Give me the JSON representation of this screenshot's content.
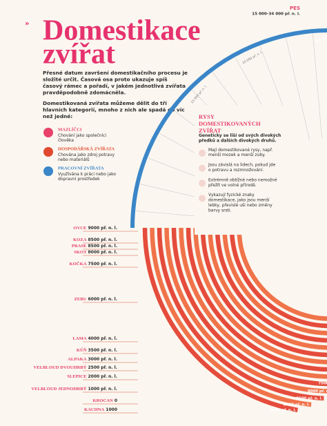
{
  "header": {
    "title_line1": "Domestikace",
    "title_line2": "zvířat"
  },
  "intro": [
    "Přesné datum završení domestikačního procesu je složité určit. Časová osa proto ukazuje spíš časový rámec a pořadí, v jakém jednotlivá zvířata pravděpodobně zdomácněla.",
    "Domestikovaná zvířata můžeme dělit do tří hlavních kategorií, mnoho z nich ale spadá do víc než jedné:"
  ],
  "categories": [
    {
      "name": "MAZLÍČCI",
      "desc": "Chování jako společníci člověka"
    },
    {
      "name": "HOSPODÁŘSKÁ ZVÍŘATA",
      "desc": "Chována jako zdroj potravy nebo materiálů"
    },
    {
      "name": "PRACOVNÍ ZVÍŘATA",
      "desc": "Využívána k práci nebo jako dopravní prostředek"
    }
  ],
  "dog": {
    "name": "PES",
    "date": "15 000–34 000 př. n. l."
  },
  "timeline_ticks": [
    "15 000 př. n. l.",
    "10 000 př. n. l."
  ],
  "traits": {
    "title": "RYSY DOMESTIKOVANÝCH ZVÍŘAT",
    "intro": "Geneticky se liší od svých divokých předků a dalších divokých druhů.",
    "items": [
      "Mají domestikované rysy, např. menší mozek a menší zuby.",
      "Jsou závislá na lidech, pokud jde o potravu a rozmnožování.",
      "Extrémně obtížné nebo nemožné přežít ve volné přírodě.",
      "Vykazují fyzické znaky domestikace, jako jsou menší lebky, převislé uši nebo změny barvy srsti."
    ]
  },
  "animals": [
    {
      "name": "OVCE",
      "date": "9000 př. n. l."
    },
    {
      "name": "KOZA",
      "date": "8500 př. n. l."
    },
    {
      "name": "PRASE",
      "date": "8500 př. n. l."
    },
    {
      "name": "SKOT",
      "date": "8000 př. n. l."
    },
    {
      "name": "KOČKA",
      "date": "7500 př. n. l."
    },
    {
      "name": "ZEBU",
      "date": "6000 př. n. l."
    },
    {
      "name": "LAMA",
      "date": "4000 př. n. l."
    },
    {
      "name": "KŮŇ",
      "date": "3500 př. n. l."
    },
    {
      "name": "ALPAKA",
      "date": "3000 př. n. l."
    },
    {
      "name": "VELBLOUD DVOUHRBÝ",
      "date": "2500 př. n. l."
    },
    {
      "name": "SLEPICE",
      "date": "2000 př. n. l."
    },
    {
      "name": "VELBLOUD JEDNOHRBÝ",
      "date": "1000 př. n. l."
    },
    {
      "name": "KROCAN",
      "date": "0"
    },
    {
      "name": "KACHNA",
      "date": "1000"
    }
  ]
}
